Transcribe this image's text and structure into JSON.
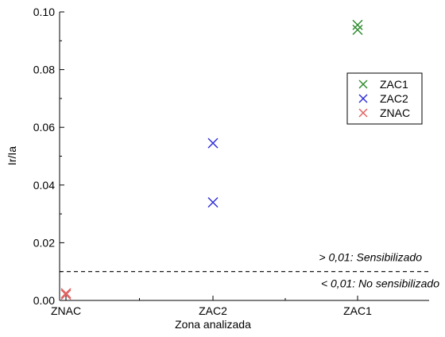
{
  "chart_data": {
    "type": "scatter",
    "xlabel": "Zona analizada",
    "ylabel": "Ir/Ia",
    "categories": [
      "ZNAC",
      "ZAC2",
      "ZAC1"
    ],
    "ylim": [
      0,
      0.1
    ],
    "yticks": [
      "0.00",
      "0.02",
      "0.04",
      "0.06",
      "0.08",
      "0.10"
    ],
    "series": [
      {
        "name": "ZAC1",
        "color": "#2a8a2a",
        "marker": "x",
        "category": "ZAC1",
        "values": [
          0.0955,
          0.0938
        ]
      },
      {
        "name": "ZAC2",
        "color": "#2b2bd6",
        "marker": "x",
        "category": "ZAC2",
        "values": [
          0.0545,
          0.034
        ]
      },
      {
        "name": "ZNAC",
        "color": "#e06060",
        "marker": "x",
        "category": "ZNAC",
        "values": [
          0.0025,
          0.002
        ]
      }
    ],
    "threshold": {
      "value": 0.01,
      "style": "dashed",
      "label_above": "> 0,01: Sensibilizado",
      "label_below": "< 0,01: No sensibilizado"
    },
    "legend": {
      "position": "top-right",
      "entries": [
        "ZAC1",
        "ZAC2",
        "ZNAC"
      ]
    },
    "grid": false
  }
}
